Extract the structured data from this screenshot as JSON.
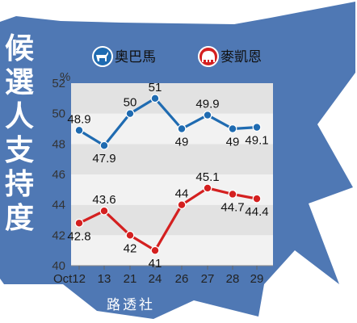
{
  "title_chars": [
    "候",
    "選",
    "人",
    "支",
    "持",
    "度"
  ],
  "source": "路透社",
  "colors": {
    "background_shape": "#4f78b4",
    "band_light": "#f2f2f2",
    "band_dark": "#e2e2e2",
    "obama": "#1f6bb1",
    "mccain": "#d42020"
  },
  "legend": [
    {
      "name": "奧巴馬",
      "icon": "donkey-icon",
      "color": "#1f6bb1"
    },
    {
      "name": "麥凱恩",
      "icon": "elephant-icon",
      "color": "#d42020"
    }
  ],
  "chart_data": {
    "type": "line",
    "title": "候選人支持度",
    "ylabel": "%",
    "ylim": [
      40,
      52
    ],
    "yticks": [
      40,
      42,
      44,
      46,
      48,
      50,
      52
    ],
    "x": [
      "Oct12",
      "13",
      "21",
      "24",
      "26",
      "27",
      "28",
      "29"
    ],
    "x_tick_labels": [
      "Oct12",
      "13",
      "21",
      "24",
      "26",
      "27",
      "28",
      "29"
    ],
    "grid": "alternating horizontal bands",
    "series": [
      {
        "name": "奧巴馬",
        "color": "#1f6bb1",
        "values": [
          48.9,
          47.9,
          50,
          51,
          49,
          49.9,
          49,
          49.1
        ],
        "labels": [
          "48.9",
          "47.9",
          "50",
          "51",
          "49",
          "49.9",
          "49",
          "49.1"
        ]
      },
      {
        "name": "麥凱恩",
        "color": "#d42020",
        "values": [
          42.8,
          43.6,
          42,
          41,
          44,
          45.1,
          44.7,
          44.4
        ],
        "labels": [
          "42.8",
          "43.6",
          "42",
          "41",
          "44",
          "45.1",
          "44.7",
          "44.4"
        ]
      }
    ]
  }
}
